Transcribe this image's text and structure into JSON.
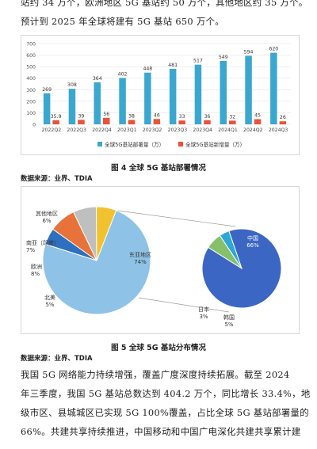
{
  "paragraph_top": [
    "站约 34 万个，欧洲地区 5G 基站约 50 万个，其他地区约 35 万个。",
    "预计到 2025 年全球将建有 5G 基站 650 万个。"
  ],
  "chart_data": [
    {
      "type": "bar",
      "categories": [
        "2022Q2",
        "2022Q3",
        "2022Q4",
        "2023Q1",
        "2023Q2",
        "2023Q3",
        "2023Q4",
        "2024Q1",
        "2024Q2",
        "2024Q3"
      ],
      "series": [
        {
          "name": "全球5G基站部署量（万）",
          "values": [
            269,
            308,
            364,
            402,
            448,
            481,
            517,
            549,
            594,
            620
          ],
          "color": "#3aa7d0"
        },
        {
          "name": "全球5G基站新增量（万）",
          "values": [
            35.9,
            39,
            56,
            38,
            46,
            33,
            36,
            32,
            45,
            26
          ],
          "color": "#e8533a"
        }
      ],
      "yticks": [
        0,
        100,
        200,
        300,
        400,
        500,
        600,
        700
      ],
      "ylim": [
        0,
        700
      ]
    },
    {
      "type": "pie",
      "labels": [
        "东亚地区",
        "北美",
        "欧洲",
        "南亚（印度）",
        "其他地区"
      ],
      "values": [
        74,
        5,
        8,
        7,
        6
      ],
      "display": [
        "74%",
        "5%",
        "8%",
        "7%",
        "6%"
      ],
      "colors": [
        "#8ec2e6",
        "#2f6fbf",
        "#e8733a",
        "#bfbfbf",
        "#f2c12e"
      ]
    },
    {
      "type": "pie",
      "labels": [
        "中国",
        "韩国",
        "日本"
      ],
      "values": [
        66,
        5,
        3
      ],
      "display": [
        "66%",
        "5%",
        "3%"
      ],
      "colors": [
        "#3b66c4",
        "#86c06a",
        "#2fa7d6"
      ]
    }
  ],
  "figure4_caption": "图 4  全球 5G 基站部署情况",
  "source1": "数据来源：业界、TDIA",
  "figure5_caption": "图 5  全球 5G 基站分布情况",
  "source2": "数据来源：业界、TDIA",
  "paragraph_bottom": [
    "    我国 5G 网络能力持续增强，覆盖广度深度持续拓展。截至 2024",
    "年三季度，我国 5G 基站总数达到 404.2 万个，同比增长 33.4%，地",
    "级市区、县城城区已实现 5G 100%覆盖，占比全球 5G 基站部署量的",
    "66%。共建共享持续推进，中国移动和中国广电深化共建共享累计建"
  ]
}
